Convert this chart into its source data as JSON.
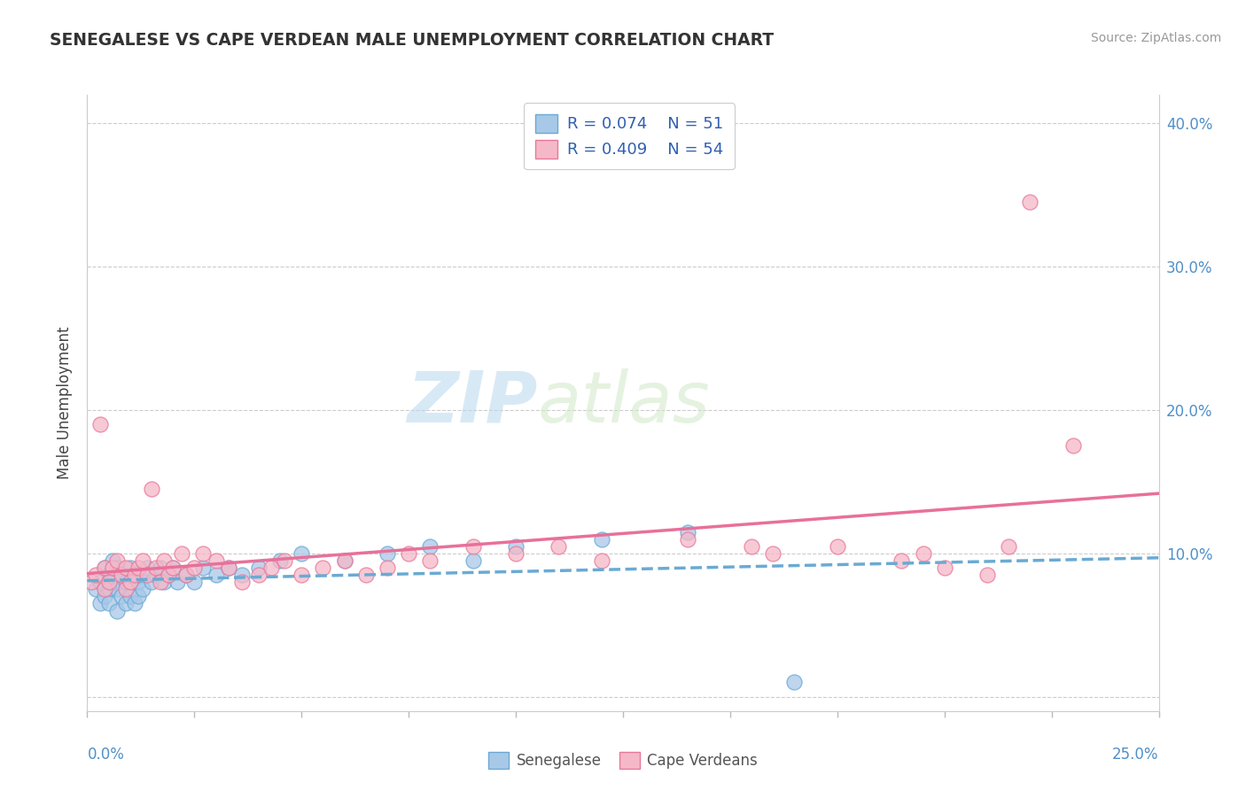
{
  "title": "SENEGALESE VS CAPE VERDEAN MALE UNEMPLOYMENT CORRELATION CHART",
  "source": "Source: ZipAtlas.com",
  "ylabel": "Male Unemployment",
  "xlim": [
    0.0,
    0.25
  ],
  "ylim": [
    -0.01,
    0.42
  ],
  "yticks": [
    0.0,
    0.1,
    0.2,
    0.3,
    0.4
  ],
  "right_ytick_labels": [
    "10.0%",
    "20.0%",
    "30.0%",
    "40.0%"
  ],
  "right_yticks": [
    0.1,
    0.2,
    0.3,
    0.4
  ],
  "legend_r1": "R = 0.074",
  "legend_n1": "N = 51",
  "legend_r2": "R = 0.409",
  "legend_n2": "N = 54",
  "color_senegalese": "#a8c8e8",
  "color_cape_verdean": "#f5b8c8",
  "edge_senegalese": "#6aaad4",
  "edge_cape_verdean": "#e8789a",
  "line_color_senegalese": "#6aaad4",
  "line_color_cape_verdean": "#e8709a",
  "senegalese_x": [
    0.002,
    0.003,
    0.003,
    0.004,
    0.004,
    0.005,
    0.005,
    0.005,
    0.006,
    0.006,
    0.007,
    0.007,
    0.007,
    0.008,
    0.008,
    0.009,
    0.009,
    0.01,
    0.01,
    0.01,
    0.011,
    0.011,
    0.012,
    0.012,
    0.013,
    0.013,
    0.014,
    0.015,
    0.016,
    0.017,
    0.018,
    0.019,
    0.02,
    0.021,
    0.023,
    0.025,
    0.027,
    0.03,
    0.033,
    0.036,
    0.04,
    0.045,
    0.05,
    0.06,
    0.07,
    0.08,
    0.09,
    0.1,
    0.12,
    0.14,
    0.165
  ],
  "senegalese_y": [
    0.075,
    0.08,
    0.065,
    0.09,
    0.07,
    0.085,
    0.075,
    0.065,
    0.095,
    0.08,
    0.09,
    0.075,
    0.06,
    0.085,
    0.07,
    0.08,
    0.065,
    0.09,
    0.08,
    0.07,
    0.085,
    0.065,
    0.08,
    0.07,
    0.085,
    0.075,
    0.09,
    0.08,
    0.085,
    0.09,
    0.08,
    0.085,
    0.09,
    0.08,
    0.085,
    0.08,
    0.09,
    0.085,
    0.09,
    0.085,
    0.09,
    0.095,
    0.1,
    0.095,
    0.1,
    0.105,
    0.095,
    0.105,
    0.11,
    0.115,
    0.01
  ],
  "cape_verdean_x": [
    0.001,
    0.002,
    0.003,
    0.004,
    0.004,
    0.005,
    0.006,
    0.007,
    0.008,
    0.009,
    0.009,
    0.01,
    0.011,
    0.012,
    0.013,
    0.014,
    0.015,
    0.016,
    0.017,
    0.018,
    0.019,
    0.02,
    0.022,
    0.023,
    0.025,
    0.027,
    0.03,
    0.033,
    0.036,
    0.04,
    0.043,
    0.046,
    0.05,
    0.055,
    0.06,
    0.065,
    0.07,
    0.075,
    0.08,
    0.09,
    0.1,
    0.11,
    0.12,
    0.14,
    0.155,
    0.16,
    0.175,
    0.19,
    0.2,
    0.21,
    0.215,
    0.22,
    0.23,
    0.195
  ],
  "cape_verdean_y": [
    0.08,
    0.085,
    0.19,
    0.09,
    0.075,
    0.08,
    0.09,
    0.095,
    0.085,
    0.09,
    0.075,
    0.08,
    0.085,
    0.09,
    0.095,
    0.085,
    0.145,
    0.09,
    0.08,
    0.095,
    0.085,
    0.09,
    0.1,
    0.085,
    0.09,
    0.1,
    0.095,
    0.09,
    0.08,
    0.085,
    0.09,
    0.095,
    0.085,
    0.09,
    0.095,
    0.085,
    0.09,
    0.1,
    0.095,
    0.105,
    0.1,
    0.105,
    0.095,
    0.11,
    0.105,
    0.1,
    0.105,
    0.095,
    0.09,
    0.085,
    0.105,
    0.345,
    0.175,
    0.1
  ],
  "watermark_zip": "ZIP",
  "watermark_atlas": "atlas"
}
